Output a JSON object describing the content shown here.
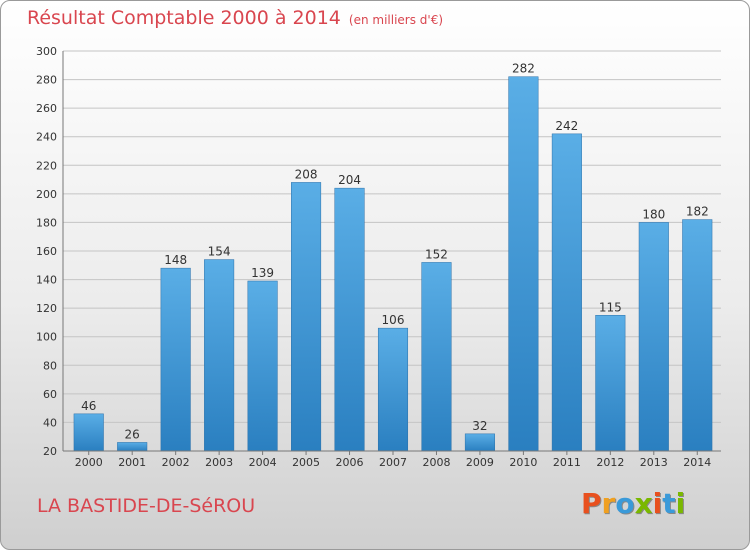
{
  "chart_data": {
    "type": "bar",
    "title": "Résultat Comptable 2000 à 2014",
    "subtitle": "(en milliers d'€)",
    "categories": [
      "2000",
      "2001",
      "2002",
      "2003",
      "2004",
      "2005",
      "2006",
      "2007",
      "2008",
      "2009",
      "2010",
      "2011",
      "2012",
      "2013",
      "2014"
    ],
    "values": [
      46,
      26,
      148,
      154,
      139,
      208,
      204,
      106,
      152,
      32,
      282,
      242,
      115,
      180,
      182
    ],
    "ylim": [
      20,
      300
    ],
    "yticks": [
      20,
      40,
      60,
      80,
      100,
      120,
      140,
      160,
      180,
      200,
      220,
      240,
      260,
      280,
      300
    ],
    "xlabel": "",
    "ylabel": "",
    "grid": true
  },
  "footer": {
    "place_name": "LA BASTIDE-DE-SéROU",
    "logo_text": "Proxiti"
  },
  "colors": {
    "bar_top": "#5aaee6",
    "bar_bottom": "#2a7fc0",
    "title": "#d9464f",
    "logo": [
      "#e8501e",
      "#f0a020",
      "#3a9ad9",
      "#7ab800",
      "#e8501e",
      "#3a9ad9",
      "#7ab800"
    ]
  }
}
